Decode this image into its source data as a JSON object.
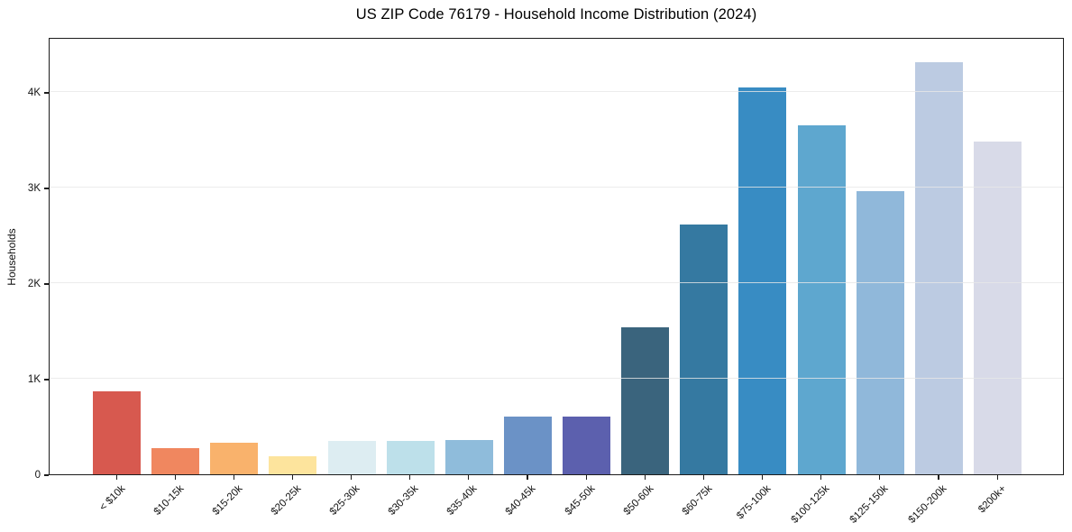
{
  "chart_data": {
    "type": "bar",
    "title": "US ZIP Code 76179 - Household Income Distribution (2024)",
    "xlabel": "",
    "ylabel": "Households",
    "ylim": [
      0,
      4575
    ],
    "grid": "horizontal",
    "gridline_color": "#e7e7e7",
    "spine_color": "#1c1c1c",
    "background": "#ffffff",
    "legend_position": "none",
    "ytick_values": [
      0,
      1000,
      2000,
      3000,
      4000
    ],
    "ytick_labels": [
      "0",
      "1K",
      "2K",
      "3K",
      "4K"
    ],
    "categories": [
      "< $10k",
      "$10-15k",
      "$15-20k",
      "$20-25k",
      "$25-30k",
      "$30-35k",
      "$35-40k",
      "$40-45k",
      "$45-50k",
      "$50-60k",
      "$60-75k",
      "$75-100k",
      "$100-125k",
      "$125-150k",
      "$150-200k",
      "$200k+"
    ],
    "values": [
      870,
      270,
      330,
      190,
      350,
      345,
      360,
      600,
      600,
      1535,
      2610,
      4045,
      3650,
      2960,
      4310,
      3480
    ],
    "bar_colors": [
      "#d7594f",
      "#f0875f",
      "#f9b26c",
      "#fde49d",
      "#ddedf2",
      "#bde0ea",
      "#8fbcdb",
      "#6b92c6",
      "#5c60ae",
      "#3a647d",
      "#3579a1",
      "#388cc3",
      "#5ea7cf",
      "#90b8da",
      "#bccbe2",
      "#d8dae8"
    ]
  }
}
